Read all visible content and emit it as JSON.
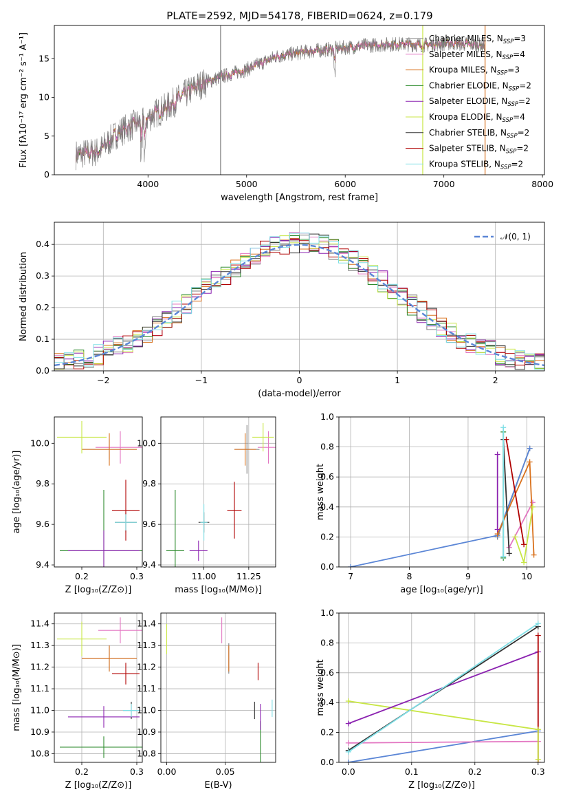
{
  "title": "PLATE=2592, MJD=54178, FIBERID=0624, z=0.179",
  "colors": {
    "chabrier_miles": "#7f7f7f",
    "salpeter_miles": "#e377c2",
    "kroupa_miles": "#d9711c",
    "chabrier_elodie": "#2e8b2e",
    "salpeter_elodie": "#8b22b0",
    "kroupa_elodie": "#c8e645",
    "chabrier_stelib": "#333333",
    "salpeter_stelib": "#b00000",
    "kroupa_stelib": "#7fdfe6",
    "gauss": "#5b86d6"
  },
  "legend1": [
    {
      "label": "Chabrier MILES, N",
      "sub": "SSP",
      "tail": "=3",
      "color": "chabrier_miles"
    },
    {
      "label": "Salpeter MILES, N",
      "sub": "SSP",
      "tail": "=4",
      "color": "salpeter_miles"
    },
    {
      "label": "Kroupa MILES, N",
      "sub": "SSP",
      "tail": "=3",
      "color": "kroupa_miles"
    },
    {
      "label": "Chabrier ELODIE, N",
      "sub": "SSP",
      "tail": "=2",
      "color": "chabrier_elodie"
    },
    {
      "label": "Salpeter ELODIE, N",
      "sub": "SSP",
      "tail": "=2",
      "color": "salpeter_elodie"
    },
    {
      "label": "Kroupa ELODIE, N",
      "sub": "SSP",
      "tail": "=4",
      "color": "kroupa_elodie"
    },
    {
      "label": "Chabrier STELIB, N",
      "sub": "SSP",
      "tail": "=2",
      "color": "chabrier_stelib"
    },
    {
      "label": "Salpeter STELIB, N",
      "sub": "SSP",
      "tail": "=2",
      "color": "salpeter_stelib"
    },
    {
      "label": "Kroupa STELIB, N",
      "sub": "SSP",
      "tail": "=2",
      "color": "kroupa_stelib"
    }
  ],
  "chart_data": [
    {
      "type": "line",
      "name": "spectrum",
      "xlabel": "wavelength [Angstrom, rest frame]",
      "ylabel": "Flux [fλ10⁻¹⁷ erg cm⁻² s⁻¹ A⁻¹]",
      "xlim": [
        3050,
        8020
      ],
      "ylim": [
        0,
        19.3
      ],
      "xticks": [
        "4000",
        "5000",
        "6000",
        "7000",
        "8000"
      ],
      "yticks": [
        "0",
        "5",
        "10",
        "15"
      ],
      "continuum": {
        "x": [
          3270,
          3500,
          3700,
          3950,
          4200,
          4500,
          4750,
          5000,
          5300,
          5600,
          5900,
          6200,
          6500,
          6800,
          7100,
          7420
        ],
        "y": [
          2.6,
          3.0,
          5.5,
          7.0,
          8.8,
          11.5,
          12.7,
          13.6,
          15.3,
          15.9,
          16.3,
          16.7,
          16.9,
          16.8,
          17.0,
          16.7
        ]
      },
      "spikes_x": [
        4736,
        6786,
        7418
      ]
    },
    {
      "type": "line",
      "name": "residual_histogram",
      "xlabel": "(data-model)/error",
      "ylabel": "Normed distribution",
      "xlim": [
        -2.5,
        2.5
      ],
      "ylim": [
        0,
        0.47
      ],
      "xticks": [
        "−2",
        "−1",
        "0",
        "1",
        "2"
      ],
      "yticks": [
        "0.0",
        "0.1",
        "0.2",
        "0.3",
        "0.4"
      ],
      "legend_label": "𝒩(0, 1)",
      "gauss": {
        "mu": 0,
        "sigma": 1
      }
    },
    {
      "type": "scatter",
      "name": "age_vs_Z",
      "xlabel": "Z [log₁₀(Z/Z⊙)]",
      "ylabel": "age  [log₁₀(age/yr)]",
      "xlim": [
        0.15,
        0.31
      ],
      "ylim": [
        9.39,
        10.13
      ],
      "xticks": [
        "0.2",
        "0.3"
      ],
      "yticks": [
        "9.4",
        "9.6",
        "9.8",
        "10.0"
      ],
      "points": [
        {
          "c": "chabrier_miles",
          "x": 0.25,
          "y": 9.97,
          "ex": 0.05,
          "ey": 0.05
        },
        {
          "c": "salpeter_miles",
          "x": 0.27,
          "y": 9.98,
          "ex": 0.045,
          "ey": 0.08
        },
        {
          "c": "kroupa_miles",
          "x": 0.25,
          "y": 9.97,
          "ex": 0.05,
          "ey": 0.08
        },
        {
          "c": "chabrier_elodie",
          "x": 0.24,
          "y": 9.47,
          "ex": 0.08,
          "ey": 0.3
        },
        {
          "c": "salpeter_elodie",
          "x": 0.24,
          "y": 9.47,
          "ex": 0.065,
          "ey": 0.1
        },
        {
          "c": "kroupa_elodie",
          "x": 0.2,
          "y": 10.03,
          "ex": 0.045,
          "ey": 0.08
        },
        {
          "c": "chabrier_stelib",
          "x": 0.28,
          "y": 9.61,
          "ex": 0.02,
          "ey": 0.05
        },
        {
          "c": "salpeter_stelib",
          "x": 0.28,
          "y": 9.67,
          "ex": 0.025,
          "ey": 0.15
        },
        {
          "c": "kroupa_stelib",
          "x": 0.28,
          "y": 9.61,
          "ex": 0.02,
          "ey": 0.04
        }
      ]
    },
    {
      "type": "scatter",
      "name": "age_vs_mass",
      "xlabel": "mass [log₁₀(M/M⊙)]",
      "ylabel": "",
      "xlim": [
        10.76,
        11.4
      ],
      "ylim": [
        9.39,
        10.13
      ],
      "xticks": [
        "11.00",
        "11.25"
      ],
      "yticks": [
        "9.4",
        "9.6",
        "9.8",
        "10.0"
      ],
      "points": [
        {
          "c": "chabrier_miles",
          "x": 11.24,
          "y": 9.97,
          "ex": 0.07,
          "ey": 0.12
        },
        {
          "c": "salpeter_miles",
          "x": 11.36,
          "y": 9.98,
          "ex": 0.06,
          "ey": 0.08
        },
        {
          "c": "kroupa_miles",
          "x": 11.23,
          "y": 9.97,
          "ex": 0.06,
          "ey": 0.08
        },
        {
          "c": "chabrier_elodie",
          "x": 10.84,
          "y": 9.47,
          "ex": 0.05,
          "ey": 0.3
        },
        {
          "c": "salpeter_elodie",
          "x": 10.97,
          "y": 9.47,
          "ex": 0.05,
          "ey": 0.05
        },
        {
          "c": "kroupa_elodie",
          "x": 11.33,
          "y": 10.03,
          "ex": 0.06,
          "ey": 0.07
        },
        {
          "c": "chabrier_stelib",
          "x": 11.0,
          "y": 9.61,
          "ex": 0.03,
          "ey": 0.05
        },
        {
          "c": "salpeter_stelib",
          "x": 11.17,
          "y": 9.67,
          "ex": 0.04,
          "ey": 0.14
        },
        {
          "c": "kroupa_stelib",
          "x": 11.0,
          "y": 9.61,
          "ex": 0.02,
          "ey": 0.09
        }
      ]
    },
    {
      "type": "line",
      "name": "mass_weight_vs_age",
      "xlabel": "age  [log₁₀(age/yr)]",
      "ylabel": "mass weight",
      "xlim": [
        6.8,
        10.3
      ],
      "ylim": [
        0,
        1
      ],
      "xticks": [
        "7",
        "8",
        "9",
        "10"
      ],
      "yticks": [
        "0.0",
        "0.2",
        "0.4",
        "0.6",
        "0.8",
        "1.0"
      ],
      "series": [
        {
          "c": "chabrier_miles",
          "x": [
            9.5,
            10.05
          ],
          "y": [
            0.2,
            0.79
          ]
        },
        {
          "c": "gauss",
          "x": [
            7.0,
            9.5,
            10.05
          ],
          "y": [
            0.0,
            0.21,
            0.79
          ]
        },
        {
          "c": "salpeter_miles",
          "x": [
            9.7,
            10.1
          ],
          "y": [
            0.13,
            0.43
          ]
        },
        {
          "c": "kroupa_miles",
          "x": [
            9.5,
            10.05,
            10.12
          ],
          "y": [
            0.22,
            0.7,
            0.08
          ]
        },
        {
          "c": "chabrier_elodie",
          "x": [
            9.6,
            9.6
          ],
          "y": [
            0.06,
            0.9
          ]
        },
        {
          "c": "salpeter_elodie",
          "x": [
            9.5,
            9.5
          ],
          "y": [
            0.25,
            0.75
          ]
        },
        {
          "c": "kroupa_elodie",
          "x": [
            9.8,
            9.95,
            10.1
          ],
          "y": [
            0.2,
            0.03,
            0.4
          ]
        },
        {
          "c": "chabrier_stelib",
          "x": [
            9.6,
            9.7
          ],
          "y": [
            0.85,
            0.09
          ]
        },
        {
          "c": "salpeter_stelib",
          "x": [
            9.65,
            9.95
          ],
          "y": [
            0.85,
            0.15
          ]
        },
        {
          "c": "kroupa_stelib",
          "x": [
            9.6,
            9.6
          ],
          "y": [
            0.07,
            0.93
          ]
        }
      ]
    },
    {
      "type": "scatter",
      "name": "mass_vs_Z",
      "xlabel": "Z [log₁₀(Z/Z⊙)]",
      "ylabel": "mass [log₁₀(M/M⊙)]",
      "xlim": [
        0.15,
        0.31
      ],
      "ylim": [
        10.76,
        11.45
      ],
      "xticks": [
        "0.2",
        "0.3"
      ],
      "yticks": [
        "10.8",
        "10.9",
        "11.0",
        "11.1",
        "11.2",
        "11.3",
        "11.4"
      ],
      "points": [
        {
          "c": "chabrier_miles",
          "x": 0.25,
          "y": 11.24,
          "ex": 0.05,
          "ey": 0.06
        },
        {
          "c": "salpeter_miles",
          "x": 0.27,
          "y": 11.37,
          "ex": 0.04,
          "ey": 0.06
        },
        {
          "c": "kroupa_miles",
          "x": 0.25,
          "y": 11.24,
          "ex": 0.05,
          "ey": 0.06
        },
        {
          "c": "chabrier_elodie",
          "x": 0.24,
          "y": 10.83,
          "ex": 0.08,
          "ey": 0.05
        },
        {
          "c": "salpeter_elodie",
          "x": 0.24,
          "y": 10.97,
          "ex": 0.065,
          "ey": 0.05
        },
        {
          "c": "kroupa_elodie",
          "x": 0.2,
          "y": 11.33,
          "ex": 0.045,
          "ey": 0.08
        },
        {
          "c": "chabrier_stelib",
          "x": 0.29,
          "y": 11.0,
          "ex": 0.015,
          "ey": 0.04
        },
        {
          "c": "salpeter_stelib",
          "x": 0.28,
          "y": 11.17,
          "ex": 0.025,
          "ey": 0.05
        },
        {
          "c": "kroupa_stelib",
          "x": 0.29,
          "y": 11.0,
          "ex": 0.015,
          "ey": 0.03
        }
      ]
    },
    {
      "type": "scatter",
      "name": "mass_vs_EBV",
      "xlabel": "E(B-V)",
      "ylabel": "",
      "xlim": [
        -0.005,
        0.093
      ],
      "ylim": [
        10.76,
        11.45
      ],
      "xticks": [
        "0.00",
        "0.05"
      ],
      "yticks": [
        "10.8",
        "10.9",
        "11.0",
        "11.1",
        "11.2",
        "11.3",
        "11.4"
      ],
      "points": [
        {
          "c": "chabrier_miles",
          "x": 0.053,
          "y": 11.24,
          "ex": 0,
          "ey": 0.07
        },
        {
          "c": "salpeter_miles",
          "x": 0.047,
          "y": 11.37,
          "ex": 0,
          "ey": 0.06
        },
        {
          "c": "kroupa_miles",
          "x": 0.053,
          "y": 11.24,
          "ex": 0,
          "ey": 0.06
        },
        {
          "c": "chabrier_elodie",
          "x": 0.08,
          "y": 10.85,
          "ex": 0,
          "ey": 0.1
        },
        {
          "c": "salpeter_elodie",
          "x": 0.08,
          "y": 10.97,
          "ex": 0,
          "ey": 0.06
        },
        {
          "c": "kroupa_elodie",
          "x": 0.0,
          "y": 11.33,
          "ex": 0,
          "ey": 0.07
        },
        {
          "c": "chabrier_stelib",
          "x": 0.075,
          "y": 11.0,
          "ex": 0,
          "ey": 0.04
        },
        {
          "c": "salpeter_stelib",
          "x": 0.078,
          "y": 11.18,
          "ex": 0,
          "ey": 0.04
        },
        {
          "c": "kroupa_stelib",
          "x": 0.09,
          "y": 11.01,
          "ex": 0,
          "ey": 0.04
        }
      ]
    },
    {
      "type": "line",
      "name": "mass_weight_vs_Z",
      "xlabel": "Z [log₁₀(Z/Z⊙)]",
      "ylabel": "mass weight",
      "xlim": [
        -0.015,
        0.31
      ],
      "ylim": [
        0,
        1
      ],
      "xticks": [
        "0.0",
        "0.1",
        "0.2",
        "0.3"
      ],
      "yticks": [
        "0.0",
        "0.2",
        "0.4",
        "0.6",
        "0.8",
        "1.0"
      ],
      "series": [
        {
          "c": "gauss",
          "x": [
            0.0,
            0.3
          ],
          "y": [
            0.0,
            0.21
          ]
        },
        {
          "c": "salpeter_miles",
          "x": [
            0.0,
            0.3
          ],
          "y": [
            0.13,
            0.14
          ]
        },
        {
          "c": "kroupa_elodie",
          "x": [
            0.0,
            0.3
          ],
          "y": [
            0.41,
            0.22
          ]
        },
        {
          "c": "salpeter_elodie",
          "x": [
            0.0,
            0.3
          ],
          "y": [
            0.26,
            0.74
          ]
        },
        {
          "c": "chabrier_stelib",
          "x": [
            0.0,
            0.3
          ],
          "y": [
            0.08,
            0.91
          ]
        },
        {
          "c": "kroupa_stelib",
          "x": [
            0.0,
            0.3
          ],
          "y": [
            0.07,
            0.93
          ]
        },
        {
          "c": "salpeter_stelib",
          "x": [
            0.3,
            0.3
          ],
          "y": [
            0.0,
            0.85
          ]
        },
        {
          "c": "kroupa_elodie",
          "x": [
            0.3,
            0.3
          ],
          "y": [
            0.02,
            0.22
          ]
        }
      ]
    }
  ]
}
